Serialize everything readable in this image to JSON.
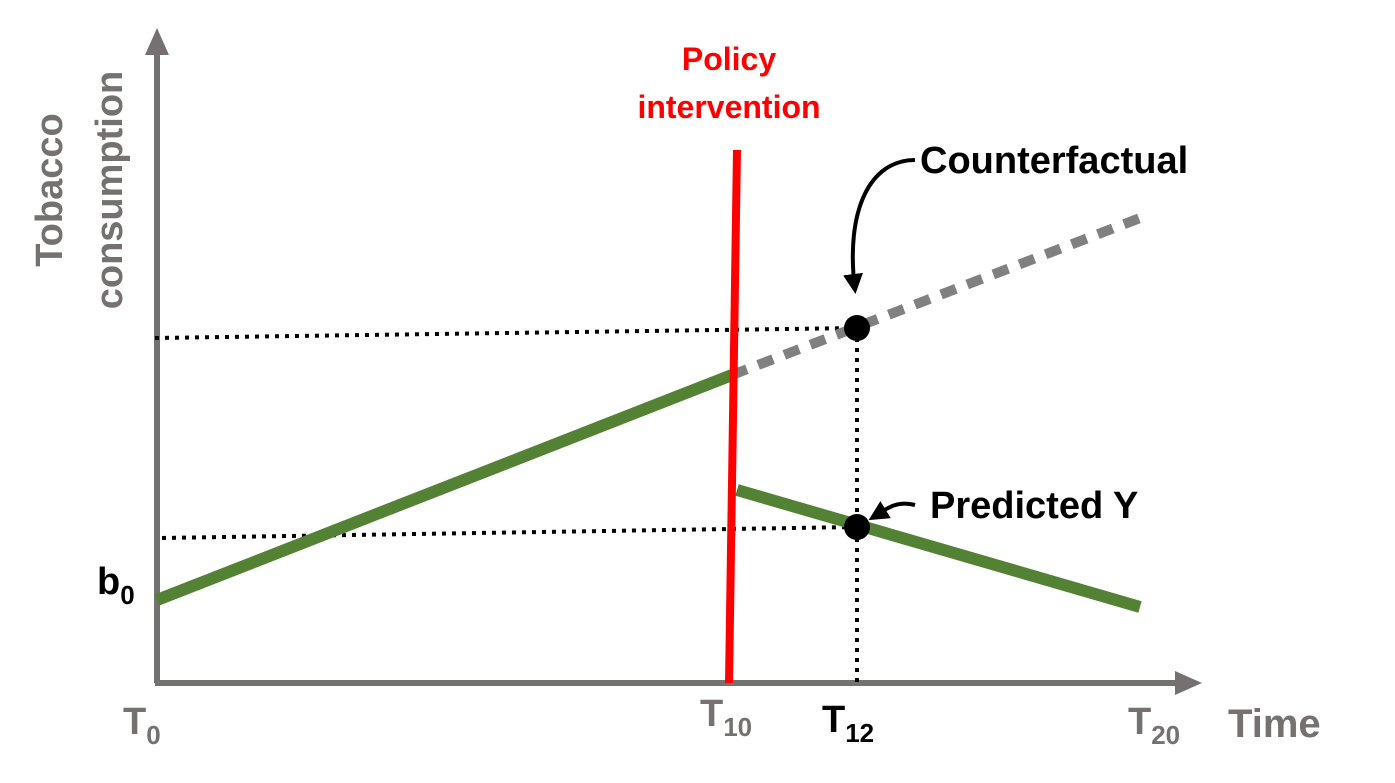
{
  "y_axis_label": [
    "Tobacco",
    "consumption"
  ],
  "x_axis_label": "Time",
  "x_ticks": [
    {
      "base": "T",
      "sub": "0"
    },
    {
      "base": "T",
      "sub": "10"
    },
    {
      "base": "T",
      "sub": "12"
    },
    {
      "base": "T",
      "sub": "20"
    }
  ],
  "intercept_label": {
    "base": "b",
    "sub": "0"
  },
  "intervention_label": [
    "Policy",
    "intervention"
  ],
  "annotations": {
    "counterfactual": "Counterfactual",
    "predicted": "Predicted Y"
  }
}
